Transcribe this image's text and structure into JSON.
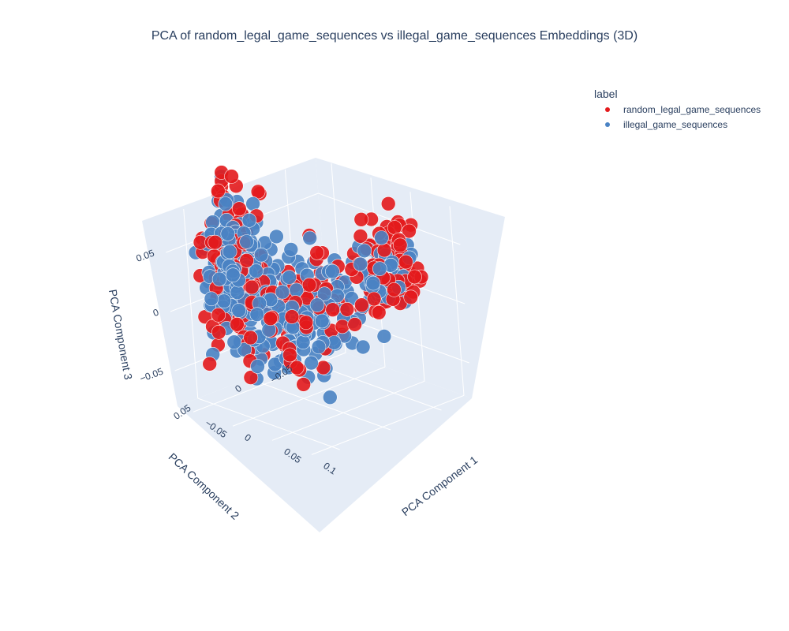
{
  "chart_data": {
    "type": "scatter",
    "title": "PCA of random_legal_game_sequences vs illegal_game_sequences Embeddings (3D)",
    "xlabel": "PCA Component 1",
    "ylabel": "PCA Component 2",
    "zlabel": "PCA Component 3",
    "x_ticks": [
      "−0.05",
      "0",
      "0.05",
      "0.1"
    ],
    "y_ticks": [
      "−0.05",
      "0",
      "0.05"
    ],
    "z_ticks": [
      "−0.05",
      "0",
      "0.05"
    ],
    "xlim": [
      -0.07,
      0.11
    ],
    "ylim": [
      -0.08,
      0.07
    ],
    "zlim": [
      -0.08,
      0.08
    ],
    "grid": true,
    "legend": {
      "title": "label",
      "position": "top-right"
    },
    "series": [
      {
        "name": "random_legal_game_sequences",
        "color": "#e41a1c"
      },
      {
        "name": "illegal_game_sequences",
        "color": "#4a83c4"
      }
    ],
    "clusters": [
      {
        "series": 0,
        "center": [
          0.035,
          -0.065,
          0.02
        ],
        "spread": [
          0.012,
          0.012,
          0.02
        ],
        "count": 70
      },
      {
        "series": 1,
        "center": [
          0.035,
          -0.06,
          0.015
        ],
        "spread": [
          0.01,
          0.01,
          0.015
        ],
        "count": 60
      },
      {
        "series": 0,
        "center": [
          -0.035,
          0.03,
          0.035
        ],
        "spread": [
          0.012,
          0.012,
          0.03
        ],
        "count": 120
      },
      {
        "series": 1,
        "center": [
          -0.035,
          0.03,
          0.03
        ],
        "spread": [
          0.012,
          0.012,
          0.025
        ],
        "count": 220
      },
      {
        "series": 0,
        "center": [
          0.0,
          0.0,
          -0.01
        ],
        "spread": [
          0.03,
          0.03,
          0.02
        ],
        "count": 100
      },
      {
        "series": 1,
        "center": [
          0.0,
          0.0,
          -0.01
        ],
        "spread": [
          0.025,
          0.025,
          0.02
        ],
        "count": 180
      }
    ]
  }
}
